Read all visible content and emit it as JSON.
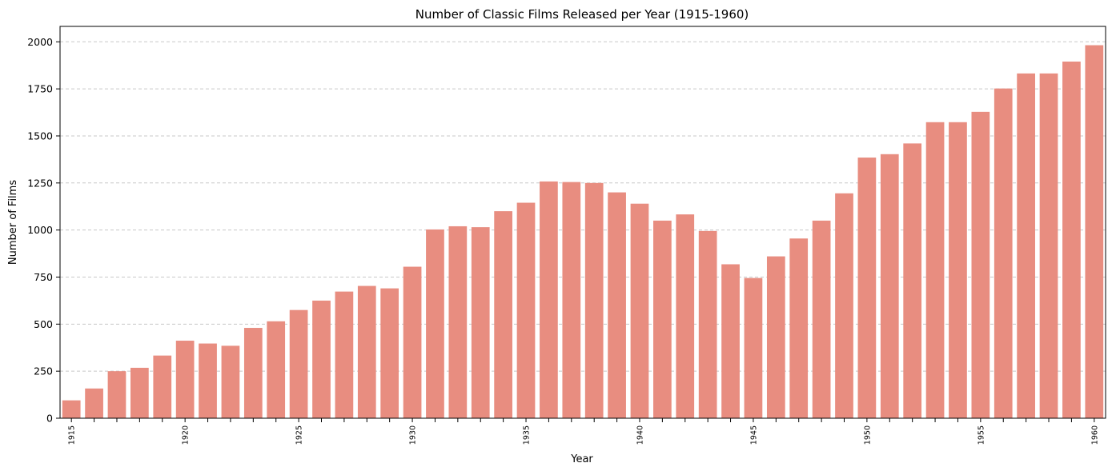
{
  "chart_data": {
    "type": "bar",
    "title": "Number of Classic Films Released per Year (1915-1960)",
    "xlabel": "Year",
    "ylabel": "Number of Films",
    "categories": [
      1915,
      1916,
      1917,
      1918,
      1919,
      1920,
      1921,
      1922,
      1923,
      1924,
      1925,
      1926,
      1927,
      1928,
      1929,
      1930,
      1931,
      1932,
      1933,
      1934,
      1935,
      1936,
      1937,
      1938,
      1939,
      1940,
      1941,
      1942,
      1943,
      1944,
      1945,
      1946,
      1947,
      1948,
      1949,
      1950,
      1951,
      1952,
      1953,
      1954,
      1955,
      1956,
      1957,
      1958,
      1959,
      1960
    ],
    "values": [
      95,
      158,
      250,
      268,
      333,
      412,
      397,
      385,
      480,
      515,
      575,
      625,
      673,
      703,
      690,
      805,
      1003,
      1020,
      1015,
      1100,
      1145,
      1258,
      1255,
      1250,
      1200,
      1140,
      1050,
      1083,
      995,
      818,
      745,
      860,
      955,
      1050,
      1195,
      1385,
      1403,
      1460,
      1573,
      1573,
      1628,
      1752,
      1832,
      1832,
      1895,
      1982
    ],
    "tick_labels_shown": [
      "1915",
      "1920",
      "1925",
      "1930",
      "1935",
      "1940",
      "1945",
      "1950",
      "1955",
      "1960"
    ],
    "y_ticks": [
      0,
      250,
      500,
      750,
      1000,
      1250,
      1500,
      1750,
      2000
    ],
    "ylim": [
      0,
      2082
    ],
    "bar_color": "#e88d80",
    "grid": "horizontal dashed",
    "legend": "none"
  }
}
